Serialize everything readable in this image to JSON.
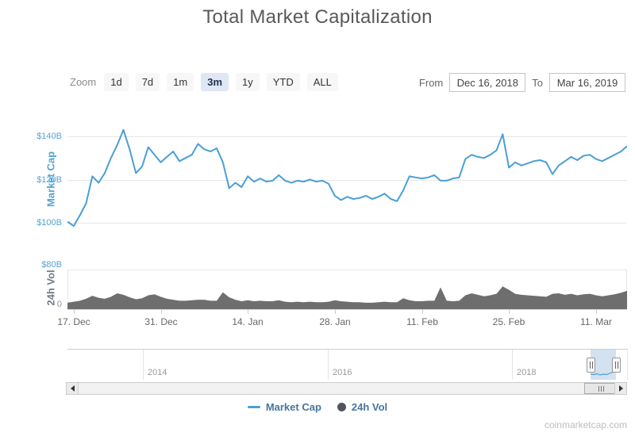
{
  "title": "Total Market Capitalization",
  "controls": {
    "zoom_label": "Zoom",
    "zoom_buttons": [
      "1d",
      "7d",
      "1m",
      "3m",
      "1y",
      "YTD",
      "ALL"
    ],
    "zoom_selected": "3m",
    "from_label": "From",
    "from_value": "Dec 16, 2018",
    "to_label": "To",
    "to_value": "Mar 16, 2019"
  },
  "axes": {
    "market_cap_label": "Market Cap",
    "market_cap_ticks": [
      "$140B",
      "$120B",
      "$100B"
    ],
    "vol_label": "24h Vol",
    "vol_ticks": [
      "$80B",
      "0"
    ]
  },
  "navigator": {
    "year_labels": [
      "2014",
      "2016",
      "2018"
    ]
  },
  "legend": {
    "market_cap": "Market Cap",
    "vol": "24h Vol"
  },
  "footer": "coinmarketcap.com",
  "colors": {
    "line_blue": "#4a9fd6",
    "axis_blue": "#55a5d2",
    "vol_gray": "#6e6e6e",
    "legend_text": "#47759e",
    "nav_highlight": "#cfdff0"
  },
  "chart_data": {
    "type": "line",
    "title": "Total Market Capitalization",
    "x_range": [
      "Dec 16, 2018",
      "Mar 16, 2019"
    ],
    "x_interval": "daily",
    "x_tick_labels": [
      "17. Dec",
      "31. Dec",
      "14. Jan",
      "28. Jan",
      "11. Feb",
      "25. Feb",
      "11. Mar"
    ],
    "x_tick_day_index": [
      1,
      15,
      29,
      43,
      57,
      71,
      85
    ],
    "grid": "horizontal",
    "legend_position": "bottom",
    "series": [
      {
        "name": "Market Cap",
        "type": "line",
        "unit": "USD billions",
        "ylim": [
          95,
          148
        ],
        "yticks": [
          100,
          120,
          140
        ],
        "values": [
          100.5,
          98.5,
          103.5,
          109,
          121.5,
          118.5,
          123,
          130,
          136,
          143,
          134,
          123,
          126,
          135,
          131.5,
          128,
          130.5,
          133,
          128.5,
          130,
          131.5,
          136.5,
          134,
          133,
          134.5,
          128,
          116,
          118.5,
          116.5,
          121.5,
          119,
          120.5,
          119,
          119.5,
          122,
          119.5,
          118.5,
          119.5,
          119,
          120,
          119,
          119.5,
          118,
          112.5,
          110.5,
          112,
          111,
          111.5,
          112.5,
          111,
          112,
          113.5,
          111,
          110,
          115,
          121.5,
          121,
          120.5,
          121,
          122,
          119.5,
          119.5,
          120.5,
          121,
          129.5,
          131.5,
          130.5,
          130,
          131.5,
          133.5,
          141,
          125.5,
          128,
          126.5,
          127.5,
          128.5,
          129,
          128,
          122.5,
          126.5,
          128.5,
          130.5,
          129,
          131,
          131.5,
          129.5,
          128.5,
          130,
          131.5,
          133,
          135.5
        ]
      },
      {
        "name": "24h Vol",
        "type": "area",
        "unit": "USD billions",
        "ylim": [
          0,
          80
        ],
        "yticks": [
          0,
          80
        ],
        "values": [
          13,
          15,
          17,
          21,
          27,
          23,
          21,
          25,
          32,
          29,
          24,
          20,
          22,
          28,
          30,
          25,
          21,
          19,
          17,
          17,
          18,
          19,
          19,
          17,
          17,
          34,
          24,
          19,
          16,
          18,
          16,
          17,
          16,
          16,
          18,
          15,
          14,
          15,
          14,
          15,
          14,
          14,
          15,
          18,
          16,
          15,
          14,
          14,
          13,
          13,
          14,
          15,
          14,
          14,
          22,
          18,
          16,
          16,
          17,
          17,
          44,
          17,
          16,
          17,
          28,
          32,
          29,
          26,
          28,
          31,
          46,
          39,
          31,
          29,
          28,
          27,
          26,
          25,
          31,
          32,
          29,
          31,
          28,
          30,
          31,
          28,
          26,
          28,
          30,
          33,
          37
        ]
      }
    ]
  }
}
